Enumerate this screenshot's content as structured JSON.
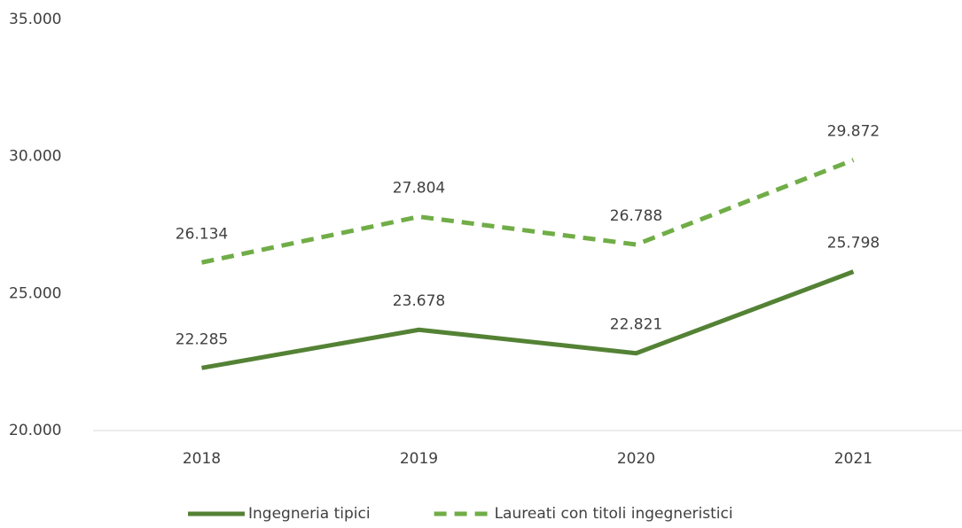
{
  "chart_data": {
    "type": "line",
    "categories": [
      "2018",
      "2019",
      "2020",
      "2021"
    ],
    "series": [
      {
        "name": "Ingegneria tipici",
        "color": "#548235",
        "dashed": false,
        "values": [
          22285,
          23678,
          22821,
          25798
        ],
        "value_labels": [
          "22.285",
          "23.678",
          "22.821",
          "25.798"
        ]
      },
      {
        "name": "Laureati con titoli ingegneristici",
        "color": "#70ad47",
        "dashed": true,
        "values": [
          26134,
          27804,
          26788,
          29872
        ],
        "value_labels": [
          "26.134",
          "27.804",
          "26.788",
          "29.872"
        ]
      }
    ],
    "ylim": [
      20000,
      35000
    ],
    "yticks": [
      {
        "value": 20000,
        "label": "20.000"
      },
      {
        "value": 25000,
        "label": "25.000"
      },
      {
        "value": 30000,
        "label": "30.000"
      },
      {
        "value": 35000,
        "label": "35.000"
      }
    ],
    "grid": false
  }
}
